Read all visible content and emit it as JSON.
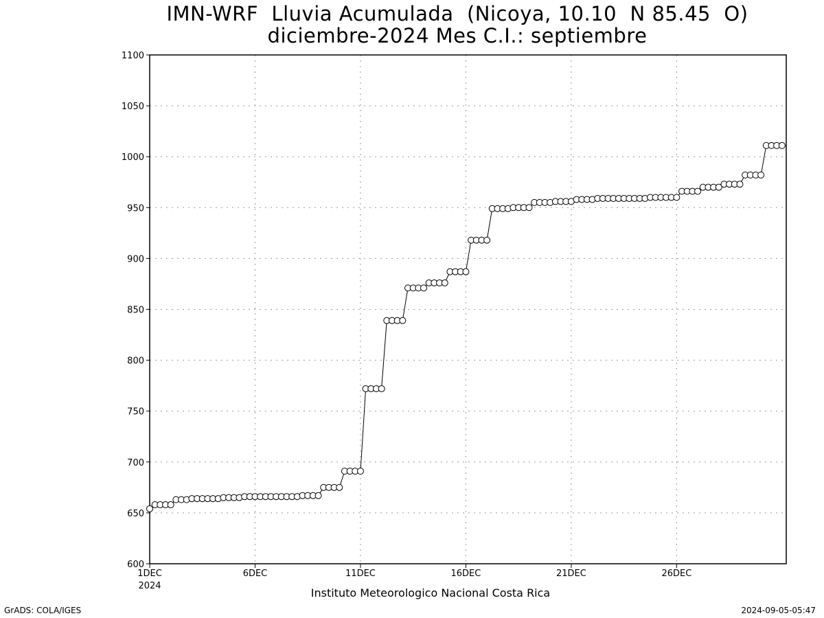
{
  "chart_data": {
    "type": "line",
    "title_line1": "IMN-WRF  Lluvia Acumulada  (Nicoya, 10.10  N 85.45  O)",
    "title_line2": "diciembre-2024 Mes C.I.: septiembre",
    "xlabel": "Instituto Meteorologico Nacional Costa Rica",
    "ylabel": "",
    "ylim": [
      600,
      1100
    ],
    "yticks": [
      600,
      650,
      700,
      750,
      800,
      850,
      900,
      950,
      1000,
      1050,
      1100
    ],
    "xlim": [
      1,
      31.2
    ],
    "xticks": [
      {
        "day": 1,
        "label": "1DEC",
        "sublabel": "2024"
      },
      {
        "day": 6,
        "label": "6DEC",
        "sublabel": ""
      },
      {
        "day": 11,
        "label": "11DEC",
        "sublabel": ""
      },
      {
        "day": 16,
        "label": "16DEC",
        "sublabel": ""
      },
      {
        "day": 21,
        "label": "21DEC",
        "sublabel": ""
      },
      {
        "day": 26,
        "label": "26DEC",
        "sublabel": ""
      }
    ],
    "grid": true,
    "marker": "open-circle",
    "series": [
      {
        "x": [
          1,
          1.25,
          1.5,
          1.75,
          2,
          2.25,
          2.5,
          2.75,
          3,
          3.25,
          3.5,
          3.75,
          4,
          4.25,
          4.5,
          4.75,
          5,
          5.25,
          5.5,
          5.75,
          6,
          6.25,
          6.5,
          6.75,
          7,
          7.25,
          7.5,
          7.75,
          8,
          8.25,
          8.5,
          8.75,
          9,
          9.25,
          9.5,
          9.75,
          10,
          10.25,
          10.5,
          10.75,
          11,
          11.25,
          11.5,
          11.75,
          12,
          12.25,
          12.5,
          12.75,
          13,
          13.25,
          13.5,
          13.75,
          14,
          14.25,
          14.5,
          14.75,
          15,
          15.25,
          15.5,
          15.75,
          16,
          16.25,
          16.5,
          16.75,
          17,
          17.25,
          17.5,
          17.75,
          18,
          18.25,
          18.5,
          18.75,
          19,
          19.25,
          19.5,
          19.75,
          20,
          20.25,
          20.5,
          20.75,
          21,
          21.25,
          21.5,
          21.75,
          22,
          22.25,
          22.5,
          22.75,
          23,
          23.25,
          23.5,
          23.75,
          24,
          24.25,
          24.5,
          24.75,
          25,
          25.25,
          25.5,
          25.75,
          26,
          26.25,
          26.5,
          26.75,
          27,
          27.25,
          27.5,
          27.75,
          28,
          28.25,
          28.5,
          28.75,
          29,
          29.25,
          29.5,
          29.75,
          30,
          30.25,
          30.5,
          30.75,
          31
        ],
        "y": [
          654,
          658,
          658,
          658,
          658,
          663,
          663,
          663,
          664,
          664,
          664,
          664,
          664,
          664,
          665,
          665,
          665,
          665,
          666,
          666,
          666,
          666,
          666,
          666,
          666,
          666,
          666,
          666,
          666,
          667,
          667,
          667,
          667,
          675,
          675,
          675,
          675,
          691,
          691,
          691,
          691,
          772,
          772,
          772,
          772,
          839,
          839,
          839,
          839,
          871,
          871,
          871,
          871,
          876,
          876,
          876,
          876,
          887,
          887,
          887,
          887,
          918,
          918,
          918,
          918,
          949,
          949,
          949,
          949,
          950,
          950,
          950,
          950,
          955,
          955,
          955,
          955,
          956,
          956,
          956,
          956,
          958,
          958,
          958,
          958,
          959,
          959,
          959,
          959,
          959,
          959,
          959,
          959,
          959,
          959,
          960,
          960,
          960,
          960,
          960,
          960,
          966,
          966,
          966,
          966,
          970,
          970,
          970,
          970,
          973,
          973,
          973,
          973,
          982,
          982,
          982,
          982,
          1011,
          1011,
          1011,
          1011
        ]
      }
    ]
  },
  "footer": {
    "left": "GrADS: COLA/IGES",
    "right": "2024-09-05-05:47"
  }
}
